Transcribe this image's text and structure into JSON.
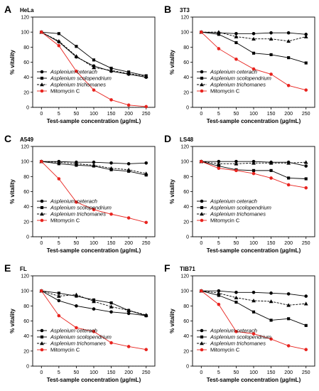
{
  "figure": {
    "colors": {
      "mitomycin": "#e8231e",
      "extract": "#000000",
      "baseline": "#000000"
    },
    "legend_entries": [
      {
        "label": "Asplenium ceterach",
        "marker": "circle",
        "italic": true
      },
      {
        "label": "Asplenium scolopendrium",
        "marker": "square",
        "italic": true
      },
      {
        "label": "Asplenium trichomanes",
        "marker": "triangle",
        "italic": true
      },
      {
        "label": "Mitomycin C",
        "marker": "circle-red",
        "italic": false
      }
    ]
  },
  "chart_data": [
    {
      "type": "line",
      "panel": "A",
      "title": "HeLa",
      "xlabel": "Test-sample concentration (µg/mL)",
      "ylabel": "% vitality",
      "categories": [
        "0",
        "5",
        "50",
        "100",
        "150",
        "200",
        "250"
      ],
      "ylim": [
        0,
        120
      ],
      "yticks": [
        0,
        20,
        40,
        60,
        80,
        100,
        120
      ],
      "baseline": 0,
      "legend": "bottom-left",
      "series": [
        {
          "name": "Asplenium ceterach",
          "values": [
            100,
            87,
            67,
            55,
            48,
            44,
            40
          ]
        },
        {
          "name": "Asplenium scolopendrium",
          "values": [
            100,
            98,
            81,
            63,
            52,
            47,
            42
          ]
        },
        {
          "name": "Asplenium trichomanes",
          "values": [
            100,
            88,
            68,
            53,
            49,
            45,
            41
          ]
        },
        {
          "name": "Mitomycin C",
          "values": [
            100,
            82,
            48,
            23,
            10,
            3,
            1
          ]
        }
      ]
    },
    {
      "type": "line",
      "panel": "B",
      "title": "3T3",
      "xlabel": "Test-sample concentration (µg/mL)",
      "ylabel": "% vitality",
      "categories": [
        "0",
        "5",
        "50",
        "100",
        "150",
        "200",
        "250"
      ],
      "ylim": [
        0,
        120
      ],
      "yticks": [
        0,
        20,
        40,
        60,
        80,
        100,
        120
      ],
      "baseline": 0,
      "legend": "bottom-left",
      "series": [
        {
          "name": "Asplenium ceterach",
          "values": [
            100,
            99,
            98,
            98,
            99,
            99,
            97
          ]
        },
        {
          "name": "Asplenium scolopendrium",
          "values": [
            100,
            97,
            86,
            72,
            70,
            66,
            59
          ]
        },
        {
          "name": "Asplenium trichomanes",
          "values": [
            100,
            100,
            94,
            91,
            91,
            88,
            94
          ]
        },
        {
          "name": "Mitomycin C",
          "values": [
            100,
            78,
            64,
            51,
            44,
            29,
            23
          ]
        }
      ]
    },
    {
      "type": "line",
      "panel": "C",
      "title": "A549",
      "xlabel": "Test-sample concentration (µg/mL)",
      "ylabel": "% vitality",
      "categories": [
        "0",
        "5",
        "50",
        "100",
        "150",
        "200",
        "250"
      ],
      "ylim": [
        0,
        120
      ],
      "yticks": [
        0,
        20,
        40,
        60,
        80,
        100,
        120
      ],
      "baseline": 0,
      "legend": "bottom-left",
      "series": [
        {
          "name": "Asplenium ceterach",
          "values": [
            100,
            100,
            99,
            99,
            98,
            97,
            98
          ]
        },
        {
          "name": "Asplenium scolopendrium",
          "values": [
            100,
            97,
            95,
            94,
            89,
            87,
            82
          ]
        },
        {
          "name": "Asplenium trichomanes",
          "values": [
            100,
            99,
            97,
            95,
            91,
            89,
            84
          ]
        },
        {
          "name": "Mitomycin C",
          "values": [
            100,
            77,
            46,
            36,
            30,
            25,
            19
          ]
        }
      ]
    },
    {
      "type": "line",
      "panel": "D",
      "title": "LS48",
      "xlabel": "Test-sample concentration (µg/mL)",
      "ylabel": "% vitality",
      "categories": [
        "0",
        "5",
        "50",
        "100",
        "150",
        "200",
        "250"
      ],
      "ylim": [
        0,
        120
      ],
      "yticks": [
        0,
        20,
        40,
        60,
        80,
        100,
        120
      ],
      "baseline": 0,
      "legend": "bottom-left",
      "series": [
        {
          "name": "Asplenium ceterach",
          "values": [
            100,
            100,
            100,
            100,
            99,
            99,
            94
          ]
        },
        {
          "name": "Asplenium scolopendrium",
          "values": [
            100,
            94,
            89,
            88,
            88,
            78,
            77
          ]
        },
        {
          "name": "Asplenium trichomanes",
          "values": [
            100,
            97,
            97,
            98,
            98,
            98,
            99
          ]
        },
        {
          "name": "Mitomycin C",
          "values": [
            100,
            91,
            88,
            84,
            78,
            69,
            65
          ]
        }
      ]
    },
    {
      "type": "line",
      "panel": "E",
      "title": "FL",
      "xlabel": "Test-sample concentration (µg/mL)",
      "ylabel": "% vitality",
      "categories": [
        "0",
        "5",
        "50",
        "100",
        "150",
        "200",
        "250"
      ],
      "ylim": [
        0,
        120
      ],
      "yticks": [
        0,
        20,
        40,
        60,
        80,
        100,
        120
      ],
      "baseline": 0,
      "legend": "bottom-left",
      "series": [
        {
          "name": "Asplenium ceterach",
          "values": [
            100,
            87,
            80,
            76,
            72,
            70,
            67
          ]
        },
        {
          "name": "Asplenium scolopendrium",
          "values": [
            100,
            97,
            93,
            88,
            84,
            74,
            67
          ]
        },
        {
          "name": "Asplenium trichomanes",
          "values": [
            100,
            93,
            95,
            86,
            79,
            74,
            68
          ]
        },
        {
          "name": "Mitomycin C",
          "values": [
            100,
            67,
            51,
            46,
            31,
            26,
            22
          ]
        }
      ]
    },
    {
      "type": "line",
      "panel": "F",
      "title": "TIB71",
      "xlabel": "Test-sample concentration (µg/mL)",
      "ylabel": "% vitality",
      "categories": [
        "0",
        "5",
        "50",
        "100",
        "150",
        "200",
        "250"
      ],
      "ylim": [
        0,
        120
      ],
      "yticks": [
        0,
        20,
        40,
        60,
        80,
        100,
        120
      ],
      "baseline": 0,
      "legend": "bottom-left",
      "series": [
        {
          "name": "Asplenium ceterach",
          "values": [
            100,
            100,
            98,
            98,
            97,
            96,
            93
          ]
        },
        {
          "name": "Asplenium scolopendrium",
          "values": [
            100,
            94,
            85,
            72,
            61,
            63,
            54
          ]
        },
        {
          "name": "Asplenium trichomanes",
          "values": [
            100,
            97,
            91,
            87,
            86,
            81,
            83
          ]
        },
        {
          "name": "Mitomycin C",
          "values": [
            100,
            82,
            46,
            43,
            36,
            27,
            22
          ]
        }
      ]
    }
  ]
}
